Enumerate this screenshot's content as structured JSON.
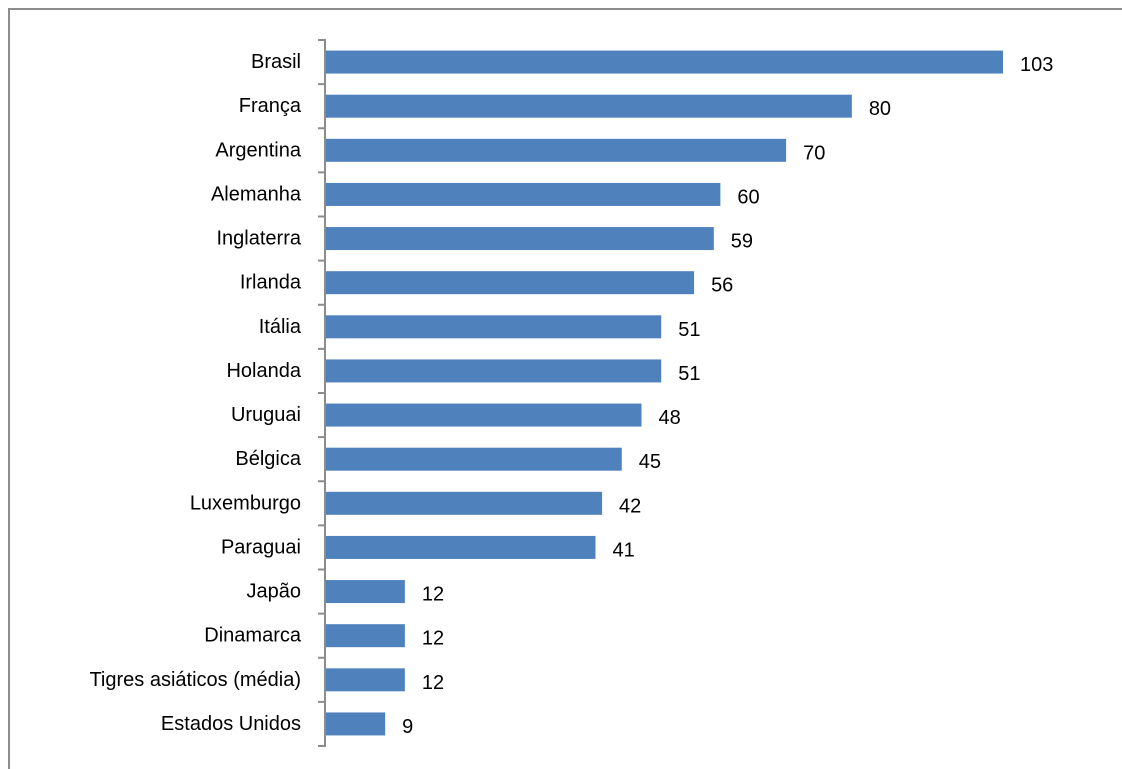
{
  "chart_data": {
    "type": "bar",
    "orientation": "horizontal",
    "categories": [
      "Brasil",
      "França",
      "Argentina",
      "Alemanha",
      "Inglaterra",
      "Irlanda",
      "Itália",
      "Holanda",
      "Uruguai",
      "Bélgica",
      "Luxemburgo",
      "Paraguai",
      "Japão",
      "Dinamarca",
      "Tigres asiáticos (média)",
      "Estados Unidos"
    ],
    "values": [
      103,
      80,
      70,
      60,
      59,
      56,
      51,
      51,
      48,
      45,
      42,
      41,
      12,
      12,
      12,
      9
    ],
    "data_labels": [
      "103",
      "80",
      "70",
      "60",
      "59",
      "56",
      "51",
      "51",
      "48",
      "45",
      "42",
      "41",
      "12",
      "12",
      "12",
      "9"
    ],
    "title": "",
    "xlabel": "",
    "ylabel": "",
    "xlim": [
      0,
      103
    ],
    "grid": false,
    "legend": "none",
    "bar_color": "#4f81bd",
    "axis_color": "#8c8c8c"
  }
}
